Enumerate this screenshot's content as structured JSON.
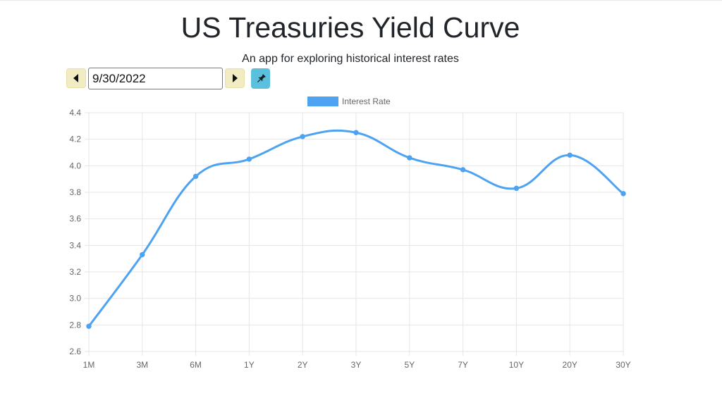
{
  "header": {
    "title": "US Treasuries Yield Curve",
    "subtitle": "An app for exploring historical interest rates"
  },
  "controls": {
    "date_value": "9/30/2022",
    "prev_icon": "caret-left-icon",
    "next_icon": "caret-right-icon",
    "pin_icon": "pushpin-icon"
  },
  "colors": {
    "line": "#4da3f2",
    "legend_swatch": "#4da3f2",
    "nav_button_bg": "#f2ecc2",
    "pin_button_bg": "#5bc0de",
    "grid": "#e6e6e6"
  },
  "chart_data": {
    "type": "line",
    "categories": [
      "1M",
      "3M",
      "6M",
      "1Y",
      "2Y",
      "3Y",
      "5Y",
      "7Y",
      "10Y",
      "20Y",
      "30Y"
    ],
    "series": [
      {
        "name": "Interest Rate",
        "values": [
          2.79,
          3.33,
          3.92,
          4.05,
          4.22,
          4.25,
          4.06,
          3.97,
          3.83,
          4.08,
          3.79
        ]
      }
    ],
    "yticks": [
      "2.6",
      "2.8",
      "3.0",
      "3.2",
      "3.4",
      "3.6",
      "3.8",
      "4.0",
      "4.2",
      "4.4"
    ],
    "ylim": [
      2.6,
      4.4
    ],
    "grid": true,
    "smooth": true,
    "legend_position": "top-center"
  }
}
